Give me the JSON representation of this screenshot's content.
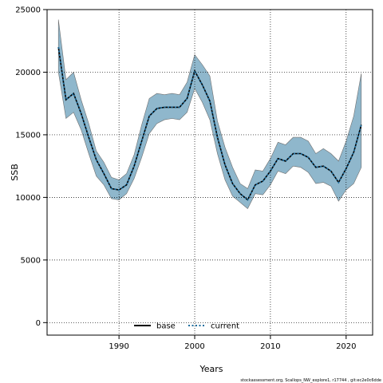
{
  "chart_data": {
    "type": "line",
    "xlabel": "Years",
    "ylabel": "SSB",
    "xlim": [
      1980.5,
      2023.5
    ],
    "ylim": [
      -1000,
      25000
    ],
    "x_ticks": [
      1990,
      2000,
      2010,
      2020
    ],
    "y_ticks": [
      0,
      5000,
      10000,
      15000,
      20000,
      25000
    ],
    "grid": true,
    "legend_position": "bottom-center",
    "x": [
      1982,
      1983,
      1984,
      1985,
      1986,
      1987,
      1988,
      1989,
      1990,
      1991,
      1992,
      1993,
      1994,
      1995,
      1996,
      1997,
      1998,
      1999,
      2000,
      2001,
      2002,
      2003,
      2004,
      2005,
      2006,
      2007,
      2008,
      2009,
      2010,
      2011,
      2012,
      2013,
      2014,
      2015,
      2016,
      2017,
      2018,
      2019,
      2020,
      2021,
      2022
    ],
    "series": [
      {
        "name": "base",
        "color": "#000000",
        "style": "solid",
        "values": [
          22000,
          17800,
          18300,
          16700,
          14800,
          13000,
          11900,
          10700,
          10600,
          11000,
          12500,
          14500,
          16500,
          17100,
          17200,
          17200,
          17200,
          17900,
          20100,
          19000,
          17700,
          14800,
          12600,
          11100,
          10300,
          9800,
          11000,
          11300,
          12100,
          13100,
          12900,
          13500,
          13500,
          13200,
          12400,
          12500,
          12100,
          11200,
          12300,
          13600,
          15800
        ]
      },
      {
        "name": "current",
        "color": "#1f6f9f",
        "style": "dotted",
        "values": [
          22000,
          17800,
          18300,
          16700,
          14800,
          13000,
          11900,
          10700,
          10600,
          11000,
          12500,
          14500,
          16500,
          17100,
          17200,
          17200,
          17200,
          17900,
          20100,
          19000,
          17700,
          14800,
          12600,
          11100,
          10300,
          9800,
          11000,
          11300,
          12100,
          13100,
          12900,
          13500,
          13500,
          13200,
          12400,
          12500,
          12100,
          11200,
          12300,
          13600,
          15800
        ]
      }
    ],
    "band_upper": [
      24200,
      19400,
      20000,
      17800,
      15900,
      13700,
      12800,
      11600,
      11400,
      11900,
      13400,
      15800,
      17900,
      18300,
      18200,
      18300,
      18200,
      19200,
      21400,
      20600,
      19700,
      16100,
      14000,
      12400,
      11100,
      10700,
      12200,
      12100,
      13100,
      14400,
      14200,
      14800,
      14800,
      14500,
      13500,
      13900,
      13500,
      12900,
      14500,
      16500,
      19900
    ],
    "band_lower": [
      20000,
      16300,
      16800,
      15400,
      13500,
      11700,
      11000,
      9900,
      9800,
      10300,
      11500,
      13200,
      15100,
      15900,
      16200,
      16300,
      16200,
      16800,
      18700,
      17600,
      16200,
      13500,
      11400,
      10100,
      9600,
      9100,
      10300,
      10200,
      11000,
      12100,
      11900,
      12500,
      12400,
      12000,
      11100,
      11200,
      10900,
      9700,
      10600,
      11100,
      12400
    ],
    "band_color": "#8fb7cc"
  },
  "caption": "stockassessment.org, Scallops_NW_explore1, r17744 , git:ec2e0c6dde"
}
